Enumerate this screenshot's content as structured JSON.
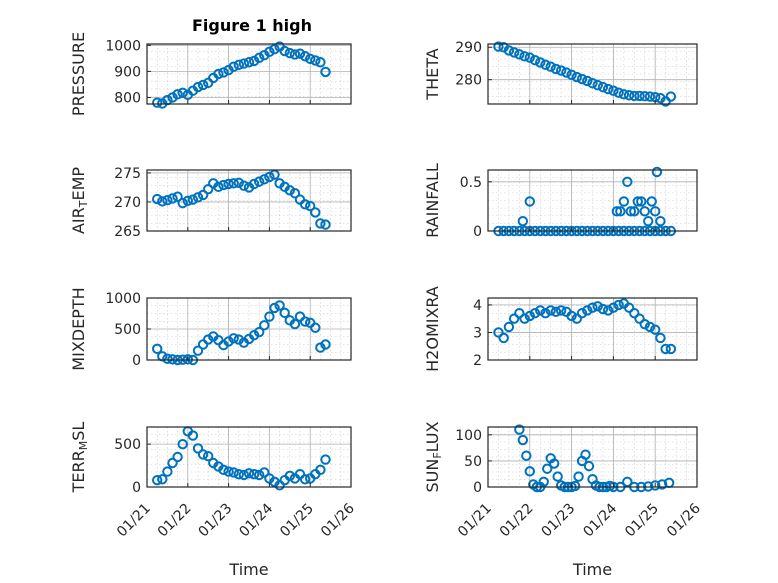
{
  "figure": {
    "title": "Figure 1 high"
  },
  "chart_data": [
    {
      "type": "scatter",
      "ylabel": "PRESSURE",
      "xlim": [
        "01/21",
        "01/26"
      ],
      "ylim": [
        775,
        1005
      ],
      "yticks": [
        800,
        900,
        1000
      ],
      "ytick_labels": [
        "800",
        "900",
        "1000"
      ],
      "grid": true,
      "x": [
        "01/21 06:00",
        "01/21 09:00",
        "01/21 12:00",
        "01/21 15:00",
        "01/21 18:00",
        "01/21 21:00",
        "01/22 00:00",
        "01/22 03:00",
        "01/22 06:00",
        "01/22 09:00",
        "01/22 12:00",
        "01/22 15:00",
        "01/22 18:00",
        "01/22 21:00",
        "01/23 00:00",
        "01/23 03:00",
        "01/23 06:00",
        "01/23 09:00",
        "01/23 12:00",
        "01/23 15:00",
        "01/23 18:00",
        "01/23 21:00",
        "01/24 00:00",
        "01/24 03:00",
        "01/24 06:00",
        "01/24 09:00",
        "01/24 12:00",
        "01/24 15:00",
        "01/24 18:00",
        "01/24 21:00",
        "01/25 00:00",
        "01/25 03:00",
        "01/25 06:00",
        "01/25 09:00"
      ],
      "y": [
        780,
        777,
        790,
        800,
        812,
        818,
        810,
        826,
        840,
        848,
        856,
        875,
        890,
        896,
        905,
        918,
        925,
        930,
        935,
        940,
        952,
        962,
        975,
        985,
        995,
        978,
        970,
        965,
        968,
        958,
        948,
        942,
        935,
        898
      ]
    },
    {
      "type": "scatter",
      "ylabel": "THETA",
      "xlim": [
        "01/21",
        "01/26"
      ],
      "ylim": [
        272.5,
        291
      ],
      "yticks": [
        280,
        290
      ],
      "ytick_labels": [
        "280",
        "290"
      ],
      "grid": true,
      "x": [
        "01/21 06:00",
        "01/21 09:00",
        "01/21 12:00",
        "01/21 15:00",
        "01/21 18:00",
        "01/21 21:00",
        "01/22 00:00",
        "01/22 03:00",
        "01/22 06:00",
        "01/22 09:00",
        "01/22 12:00",
        "01/22 15:00",
        "01/22 18:00",
        "01/22 21:00",
        "01/23 00:00",
        "01/23 03:00",
        "01/23 06:00",
        "01/23 09:00",
        "01/23 12:00",
        "01/23 15:00",
        "01/23 18:00",
        "01/23 21:00",
        "01/24 00:00",
        "01/24 03:00",
        "01/24 06:00",
        "01/24 09:00",
        "01/24 12:00",
        "01/24 15:00",
        "01/24 18:00",
        "01/24 21:00",
        "01/25 00:00",
        "01/25 03:00",
        "01/25 06:00",
        "01/25 09:00"
      ],
      "y": [
        290.2,
        290,
        289,
        288.4,
        287.8,
        287.2,
        286.8,
        286,
        285.3,
        284.6,
        284,
        283.3,
        282.8,
        282.2,
        281.5,
        280.8,
        280.2,
        279.6,
        278.9,
        278.3,
        277.7,
        277.1,
        276.6,
        276,
        275.5,
        275.2,
        275,
        275,
        274.9,
        274.8,
        274.6,
        274.3,
        273.3,
        274.8
      ]
    },
    {
      "type": "scatter",
      "ylabel": "AIR_TEMP",
      "xlim": [
        "01/21",
        "01/26"
      ],
      "ylim": [
        265,
        275.5
      ],
      "yticks": [
        265,
        270,
        275
      ],
      "ytick_labels": [
        "265",
        "270",
        "275"
      ],
      "grid": true,
      "x": [
        "01/21 06:00",
        "01/21 09:00",
        "01/21 12:00",
        "01/21 15:00",
        "01/21 18:00",
        "01/21 21:00",
        "01/22 00:00",
        "01/22 03:00",
        "01/22 06:00",
        "01/22 09:00",
        "01/22 12:00",
        "01/22 15:00",
        "01/22 18:00",
        "01/22 21:00",
        "01/23 00:00",
        "01/23 03:00",
        "01/23 06:00",
        "01/23 09:00",
        "01/23 12:00",
        "01/23 15:00",
        "01/23 18:00",
        "01/23 21:00",
        "01/24 00:00",
        "01/24 03:00",
        "01/24 06:00",
        "01/24 09:00",
        "01/24 12:00",
        "01/24 15:00",
        "01/24 18:00",
        "01/24 21:00",
        "01/25 00:00",
        "01/25 03:00",
        "01/25 06:00",
        "01/25 09:00"
      ],
      "y": [
        270.5,
        270.1,
        270.3,
        270.6,
        270.9,
        269.8,
        270.2,
        270.4,
        270.8,
        271.2,
        272.2,
        273.2,
        272.6,
        272.9,
        273.1,
        273.2,
        273.3,
        272.8,
        272.5,
        273.1,
        273.5,
        273.9,
        274.3,
        274.7,
        273.2,
        272.6,
        272,
        271.5,
        270.4,
        269.6,
        269.3,
        268.2,
        266.3,
        266.1
      ]
    },
    {
      "type": "scatter",
      "ylabel": "RAINFALL",
      "xlim": [
        "01/21",
        "01/26"
      ],
      "ylim": [
        0,
        0.62
      ],
      "yticks": [
        0,
        0.5
      ],
      "ytick_labels": [
        "0",
        "0.5"
      ],
      "grid": true,
      "x": [
        "01/21 06:00",
        "01/21 09:00",
        "01/21 12:00",
        "01/21 15:00",
        "01/21 18:00",
        "01/21 21:00",
        "01/22 00:00",
        "01/22 03:00",
        "01/22 06:00",
        "01/22 09:00",
        "01/22 12:00",
        "01/22 15:00",
        "01/22 18:00",
        "01/22 21:00",
        "01/23 00:00",
        "01/23 03:00",
        "01/23 06:00",
        "01/23 09:00",
        "01/23 12:00",
        "01/23 15:00",
        "01/23 18:00",
        "01/23 21:00",
        "01/24 00:00",
        "01/24 03:00",
        "01/24 06:00",
        "01/24 09:00",
        "01/24 12:00",
        "01/24 15:00",
        "01/24 18:00",
        "01/24 21:00",
        "01/25 00:00",
        "01/25 03:00",
        "01/25 06:00",
        "01/25 09:00",
        "01/21 20:00",
        "01/22 00:00",
        "01/24 02:00",
        "01/24 04:00",
        "01/24 06:00",
        "01/24 08:00",
        "01/24 10:00",
        "01/24 12:00",
        "01/24 14:00",
        "01/24 16:00",
        "01/24 18:00",
        "01/24 20:00",
        "01/24 22:00",
        "01/25 00:00",
        "01/25 01:00",
        "01/25 03:00"
      ],
      "y": [
        0,
        0,
        0,
        0,
        0,
        0,
        0,
        0,
        0,
        0,
        0,
        0,
        0,
        0,
        0,
        0,
        0,
        0,
        0,
        0,
        0,
        0,
        0,
        0,
        0,
        0,
        0,
        0,
        0,
        0,
        0,
        0,
        0,
        0,
        0.1,
        0.3,
        0.2,
        0.2,
        0.3,
        0.5,
        0.2,
        0.2,
        0.3,
        0.3,
        0.2,
        0.1,
        0.3,
        0.2,
        0.6,
        0.1
      ]
    },
    {
      "type": "scatter",
      "ylabel": "MIXDEPTH",
      "xlim": [
        "01/21",
        "01/26"
      ],
      "ylim": [
        0,
        1000
      ],
      "yticks": [
        0,
        500,
        1000
      ],
      "ytick_labels": [
        "0",
        "500",
        "1000"
      ],
      "grid": true,
      "x": [
        "01/21 06:00",
        "01/21 09:00",
        "01/21 12:00",
        "01/21 15:00",
        "01/21 18:00",
        "01/21 21:00",
        "01/22 00:00",
        "01/22 03:00",
        "01/22 06:00",
        "01/22 09:00",
        "01/22 12:00",
        "01/22 15:00",
        "01/22 18:00",
        "01/22 21:00",
        "01/23 00:00",
        "01/23 03:00",
        "01/23 06:00",
        "01/23 09:00",
        "01/23 12:00",
        "01/23 15:00",
        "01/23 18:00",
        "01/23 21:00",
        "01/24 00:00",
        "01/24 03:00",
        "01/24 06:00",
        "01/24 09:00",
        "01/24 12:00",
        "01/24 15:00",
        "01/24 18:00",
        "01/24 21:00",
        "01/25 00:00",
        "01/25 03:00",
        "01/25 06:00",
        "01/25 09:00"
      ],
      "y": [
        180,
        60,
        20,
        10,
        0,
        5,
        10,
        0,
        150,
        250,
        330,
        380,
        320,
        240,
        300,
        350,
        330,
        280,
        340,
        400,
        450,
        560,
        700,
        840,
        880,
        760,
        640,
        580,
        700,
        620,
        600,
        520,
        200,
        250
      ]
    },
    {
      "type": "scatter",
      "ylabel": "H2OMIXRA",
      "xlim": [
        "01/21",
        "01/26"
      ],
      "ylim": [
        2,
        4.25
      ],
      "yticks": [
        2,
        3,
        4
      ],
      "ytick_labels": [
        "2",
        "3",
        "4"
      ],
      "grid": true,
      "x": [
        "01/21 06:00",
        "01/21 09:00",
        "01/21 12:00",
        "01/21 15:00",
        "01/21 18:00",
        "01/21 21:00",
        "01/22 00:00",
        "01/22 03:00",
        "01/22 06:00",
        "01/22 09:00",
        "01/22 12:00",
        "01/22 15:00",
        "01/22 18:00",
        "01/22 21:00",
        "01/23 00:00",
        "01/23 03:00",
        "01/23 06:00",
        "01/23 09:00",
        "01/23 12:00",
        "01/23 15:00",
        "01/23 18:00",
        "01/23 21:00",
        "01/24 00:00",
        "01/24 03:00",
        "01/24 06:00",
        "01/24 09:00",
        "01/24 12:00",
        "01/24 15:00",
        "01/24 18:00",
        "01/24 21:00",
        "01/25 00:00",
        "01/25 03:00",
        "01/25 06:00",
        "01/25 09:00"
      ],
      "y": [
        3,
        2.8,
        3.2,
        3.5,
        3.7,
        3.5,
        3.6,
        3.7,
        3.8,
        3.7,
        3.8,
        3.75,
        3.8,
        3.75,
        3.6,
        3.5,
        3.7,
        3.8,
        3.9,
        3.95,
        3.85,
        3.8,
        3.9,
        4.0,
        4.05,
        3.9,
        3.7,
        3.5,
        3.3,
        3.2,
        3.1,
        2.8,
        2.4,
        2.4
      ]
    },
    {
      "type": "scatter",
      "ylabel": "TERR_MSL",
      "xlim": [
        "01/21",
        "01/26"
      ],
      "ylim": [
        0,
        700
      ],
      "yticks": [
        0,
        500
      ],
      "ytick_labels": [
        "0",
        "500"
      ],
      "grid": true,
      "x": [
        "01/21 06:00",
        "01/21 09:00",
        "01/21 12:00",
        "01/21 15:00",
        "01/21 18:00",
        "01/21 21:00",
        "01/22 00:00",
        "01/22 03:00",
        "01/22 06:00",
        "01/22 09:00",
        "01/22 12:00",
        "01/22 15:00",
        "01/22 18:00",
        "01/22 21:00",
        "01/23 00:00",
        "01/23 03:00",
        "01/23 06:00",
        "01/23 09:00",
        "01/23 12:00",
        "01/23 15:00",
        "01/23 18:00",
        "01/23 21:00",
        "01/24 00:00",
        "01/24 03:00",
        "01/24 06:00",
        "01/24 09:00",
        "01/24 12:00",
        "01/24 15:00",
        "01/24 18:00",
        "01/24 21:00",
        "01/25 00:00",
        "01/25 03:00",
        "01/25 06:00",
        "01/25 09:00"
      ],
      "y": [
        80,
        90,
        180,
        280,
        350,
        500,
        650,
        600,
        450,
        380,
        360,
        280,
        240,
        200,
        180,
        170,
        150,
        140,
        160,
        150,
        140,
        170,
        100,
        60,
        20,
        80,
        130,
        100,
        150,
        90,
        100,
        150,
        200,
        320
      ]
    },
    {
      "type": "scatter",
      "ylabel": "SUN_FLUX",
      "xlim": [
        "01/21",
        "01/26"
      ],
      "ylim": [
        0,
        115
      ],
      "yticks": [
        0,
        50,
        100
      ],
      "ytick_labels": [
        "0",
        "50",
        "100"
      ],
      "grid": true,
      "x": [
        "01/21 18:00",
        "01/21 20:00",
        "01/21 22:00",
        "01/22 00:00",
        "01/22 02:00",
        "01/22 04:00",
        "01/22 06:00",
        "01/22 08:00",
        "01/22 10:00",
        "01/22 12:00",
        "01/22 14:00",
        "01/22 16:00",
        "01/22 18:00",
        "01/22 20:00",
        "01/22 22:00",
        "01/23 00:00",
        "01/23 02:00",
        "01/23 04:00",
        "01/23 06:00",
        "01/23 08:00",
        "01/23 10:00",
        "01/23 12:00",
        "01/23 14:00",
        "01/23 16:00",
        "01/23 18:00",
        "01/23 20:00",
        "01/23 22:00",
        "01/24 00:00",
        "01/24 04:00",
        "01/24 08:00",
        "01/24 12:00",
        "01/24 16:00",
        "01/24 20:00",
        "01/25 00:00",
        "01/25 04:00",
        "01/25 08:00"
      ],
      "y": [
        110,
        90,
        60,
        30,
        5,
        0,
        0,
        10,
        35,
        55,
        45,
        20,
        3,
        0,
        0,
        0,
        2,
        20,
        50,
        62,
        40,
        15,
        3,
        0,
        0,
        0,
        2,
        0,
        0,
        10,
        0,
        0,
        1,
        3,
        5,
        8
      ]
    }
  ],
  "axes_titles": {
    "xlabel": "Time",
    "xticks": [
      "01/21",
      "01/22",
      "01/23",
      "01/24",
      "01/25",
      "01/26"
    ]
  }
}
